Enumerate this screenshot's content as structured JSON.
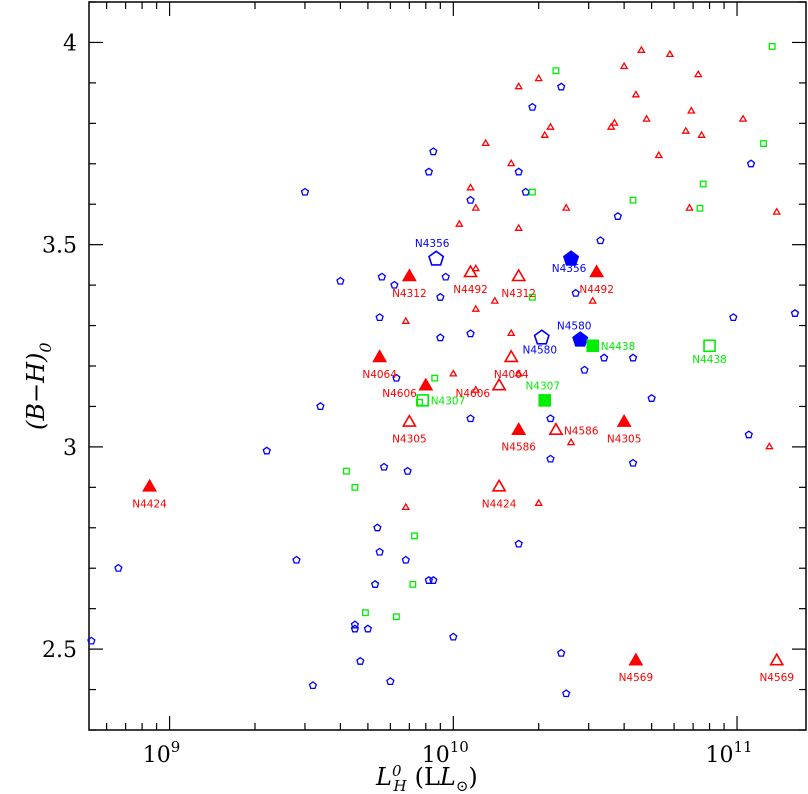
{
  "chart_data": {
    "type": "scatter",
    "title": "",
    "xlabel": {
      "main": "L",
      "sup": "0",
      "sub": "H",
      "unit": "(L",
      "unit_sub": "⊙",
      "unit_close": ")"
    },
    "ylabel": "(B−H)",
    "ylabel_sub": "0",
    "x_scale": "log",
    "xlim": [
      520000000.0,
      175000000000.0
    ],
    "ylim": [
      2.3,
      4.1
    ],
    "grid": false,
    "legend": "none",
    "x_ticks": [
      {
        "value": 1000000000.0,
        "base": "10",
        "exp": "9"
      },
      {
        "value": 10000000000.0,
        "base": "10",
        "exp": "10"
      },
      {
        "value": 100000000000.0,
        "base": "10",
        "exp": "11"
      }
    ],
    "y_ticks": [
      {
        "value": 2.5,
        "label": "2.5"
      },
      {
        "value": 3.0,
        "label": "3"
      },
      {
        "value": 3.5,
        "label": "3.5"
      },
      {
        "value": 4.0,
        "label": "4"
      }
    ],
    "colors": {
      "red": "#ff0000",
      "blue": "#0000ff",
      "green": "#00ee00"
    },
    "series": [
      {
        "marker": "triangle",
        "color": "red",
        "filled": false,
        "size": "small",
        "points": [
          [
            46000000000.0,
            3.98
          ],
          [
            58000000000.0,
            3.97
          ],
          [
            73000000000.0,
            3.92
          ],
          [
            40000000000.0,
            3.94
          ],
          [
            44000000000.0,
            3.87
          ],
          [
            36000000000.0,
            3.79
          ],
          [
            48000000000.0,
            3.81
          ],
          [
            66000000000.0,
            3.78
          ],
          [
            75000000000.0,
            3.77
          ],
          [
            69000000000.0,
            3.83
          ],
          [
            105000000000.0,
            3.81
          ],
          [
            53000000000.0,
            3.72
          ],
          [
            17000000000.0,
            3.89
          ],
          [
            20000000000.0,
            3.91
          ],
          [
            22000000000.0,
            3.79
          ],
          [
            21000000000.0,
            3.77
          ],
          [
            16000000000.0,
            3.7
          ],
          [
            13000000000.0,
            3.75
          ],
          [
            11500000000.0,
            3.64
          ],
          [
            12000000000.0,
            3.59
          ],
          [
            10500000000.0,
            3.55
          ],
          [
            17000000000.0,
            3.54
          ],
          [
            25000000000.0,
            3.59
          ],
          [
            68000000000.0,
            3.59
          ],
          [
            138000000000.0,
            3.58
          ],
          [
            31000000000.0,
            3.36
          ],
          [
            14000000000.0,
            3.36
          ],
          [
            12000000000.0,
            3.44
          ],
          [
            12000000000.0,
            3.34
          ],
          [
            16000000000.0,
            3.28
          ],
          [
            6800000000.0,
            3.31
          ],
          [
            26000000000.0,
            3.01
          ],
          [
            20000000000.0,
            2.86
          ],
          [
            130000000000.0,
            3.0
          ],
          [
            6800000000.0,
            2.85
          ],
          [
            10000000000.0,
            3.18
          ],
          [
            12000000000.0,
            3.14
          ],
          [
            17000000000.0,
            3.18
          ],
          [
            37000000000.0,
            3.8
          ]
        ]
      },
      {
        "marker": "pentagon",
        "color": "blue",
        "filled": false,
        "size": "small",
        "points": [
          [
            24000000000.0,
            3.89
          ],
          [
            19000000000.0,
            3.84
          ],
          [
            8500000000.0,
            3.73
          ],
          [
            8200000000.0,
            3.68
          ],
          [
            17000000000.0,
            3.68
          ],
          [
            18000000000.0,
            3.63
          ],
          [
            11500000000.0,
            3.61
          ],
          [
            3000000000.0,
            3.63
          ],
          [
            112000000000.0,
            3.7
          ],
          [
            38000000000.0,
            3.57
          ],
          [
            33000000000.0,
            3.51
          ],
          [
            4000000000.0,
            3.41
          ],
          [
            5600000000.0,
            3.42
          ],
          [
            6200000000.0,
            3.4
          ],
          [
            9400000000.0,
            3.42
          ],
          [
            9000000000.0,
            3.37
          ],
          [
            27000000000.0,
            3.38
          ],
          [
            160000000000.0,
            3.33
          ],
          [
            5500000000.0,
            3.32
          ],
          [
            97000000000.0,
            3.32
          ],
          [
            9000000000.0,
            3.27
          ],
          [
            11500000000.0,
            3.28
          ],
          [
            6300000000.0,
            3.17
          ],
          [
            3400000000.0,
            3.1
          ],
          [
            11500000000.0,
            3.07
          ],
          [
            22000000000.0,
            3.07
          ],
          [
            34000000000.0,
            3.22
          ],
          [
            43000000000.0,
            3.22
          ],
          [
            29000000000.0,
            3.19
          ],
          [
            50000000000.0,
            3.12
          ],
          [
            2200000000.0,
            2.99
          ],
          [
            5700000000.0,
            2.95
          ],
          [
            6900000000.0,
            2.94
          ],
          [
            22000000000.0,
            2.97
          ],
          [
            43000000000.0,
            2.96
          ],
          [
            110000000000.0,
            3.03
          ],
          [
            17000000000.0,
            2.76
          ],
          [
            5400000000.0,
            2.8
          ],
          [
            5500000000.0,
            2.74
          ],
          [
            6800000000.0,
            2.72
          ],
          [
            2800000000.0,
            2.72
          ],
          [
            660000000.0,
            2.7
          ],
          [
            5300000000.0,
            2.66
          ],
          [
            8200000000.0,
            2.67
          ],
          [
            8500000000.0,
            2.67
          ],
          [
            4500000000.0,
            2.55
          ],
          [
            4500000000.0,
            2.56
          ],
          [
            5000000000.0,
            2.55
          ],
          [
            10000000000.0,
            2.53
          ],
          [
            4700000000.0,
            2.47
          ],
          [
            530000000.0,
            2.52
          ],
          [
            24000000000.0,
            2.49
          ],
          [
            6000000000.0,
            2.42
          ],
          [
            3200000000.0,
            2.41
          ],
          [
            25000000000.0,
            2.39
          ]
        ]
      },
      {
        "marker": "square",
        "color": "green",
        "filled": false,
        "size": "small",
        "points": [
          [
            133000000000.0,
            3.99
          ],
          [
            23000000000.0,
            3.93
          ],
          [
            124000000000.0,
            3.75
          ],
          [
            76000000000.0,
            3.65
          ],
          [
            19000000000.0,
            3.63
          ],
          [
            43000000000.0,
            3.61
          ],
          [
            74000000000.0,
            3.59
          ],
          [
            19000000000.0,
            3.37
          ],
          [
            8600000000.0,
            3.17
          ],
          [
            7600000000.0,
            3.11
          ],
          [
            4200000000.0,
            2.94
          ],
          [
            4500000000.0,
            2.9
          ],
          [
            7300000000.0,
            2.78
          ],
          [
            7200000000.0,
            2.66
          ],
          [
            4900000000.0,
            2.59
          ],
          [
            6300000000.0,
            2.58
          ]
        ]
      },
      {
        "marker": "triangle",
        "color": "red",
        "filled": true,
        "size": "large",
        "points": [
          [
            7000000000.0,
            3.42,
            "N4312"
          ],
          [
            32000000000.0,
            3.43,
            "N4492"
          ],
          [
            5500000000.0,
            3.22,
            "N4064"
          ],
          [
            8000000000.0,
            3.15,
            "N4606"
          ],
          [
            17000000000.0,
            3.04,
            "N4586"
          ],
          [
            40000000000.0,
            3.06,
            "N4305"
          ],
          [
            850000000.0,
            2.9,
            "N4424"
          ],
          [
            44000000000.0,
            2.47,
            "N4569"
          ]
        ]
      },
      {
        "marker": "triangle",
        "color": "red",
        "filled": false,
        "size": "large",
        "points": [
          [
            11500000000.0,
            3.43,
            "N4492"
          ],
          [
            17000000000.0,
            3.42,
            "N4312"
          ],
          [
            16000000000.0,
            3.22,
            "N4064"
          ],
          [
            14500000000.0,
            3.15,
            "N4606"
          ],
          [
            23000000000.0,
            3.04,
            "N4586"
          ],
          [
            7000000000.0,
            3.06,
            "N4305"
          ],
          [
            14500000000.0,
            2.9,
            "N4424"
          ],
          [
            138000000000.0,
            2.47,
            "N4569"
          ]
        ]
      },
      {
        "marker": "pentagon",
        "color": "blue",
        "filled": true,
        "size": "large",
        "points": [
          [
            26000000000.0,
            3.465,
            "N4356"
          ],
          [
            28000000000.0,
            3.265,
            "N4580"
          ]
        ]
      },
      {
        "marker": "pentagon",
        "color": "blue",
        "filled": false,
        "size": "large",
        "points": [
          [
            8700000000.0,
            3.465,
            "N4356"
          ],
          [
            20500000000.0,
            3.27,
            "N4580"
          ]
        ]
      },
      {
        "marker": "square",
        "color": "green",
        "filled": true,
        "size": "large",
        "points": [
          [
            31000000000.0,
            3.25,
            "N4438"
          ],
          [
            21000000000.0,
            3.115,
            "N4307"
          ]
        ]
      },
      {
        "marker": "square",
        "color": "green",
        "filled": false,
        "size": "large",
        "points": [
          [
            80000000000.0,
            3.25,
            "N4438"
          ],
          [
            7800000000.0,
            3.115,
            "N4307"
          ]
        ]
      }
    ]
  }
}
